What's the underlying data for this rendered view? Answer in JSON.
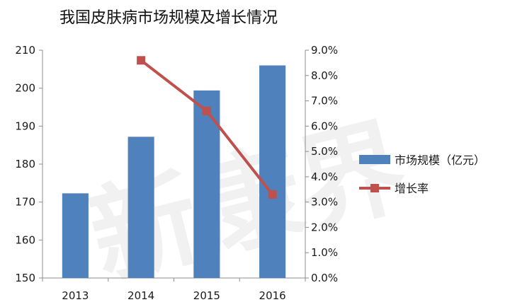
{
  "chart_data": {
    "type": "bar",
    "title": "我国皮肤病市场规模及增长情况",
    "categories": [
      "2013",
      "2014",
      "2015",
      "2016"
    ],
    "series": [
      {
        "name": "市场规模（亿元）",
        "type": "bar",
        "axis": "left",
        "values": [
          172.3,
          187.2,
          199.4,
          206.0
        ],
        "color": "#4F81BD"
      },
      {
        "name": "增长率",
        "type": "line",
        "axis": "right",
        "values": [
          null,
          8.6,
          6.6,
          3.3
        ],
        "color": "#C0504D"
      }
    ],
    "y_left": {
      "min": 150,
      "max": 210,
      "ticks": [
        "150",
        "160",
        "170",
        "180",
        "190",
        "200",
        "210"
      ]
    },
    "y_right": {
      "min": 0,
      "max": 9,
      "ticks": [
        "0.0%",
        "1.0%",
        "2.0%",
        "3.0%",
        "4.0%",
        "5.0%",
        "6.0%",
        "7.0%",
        "8.0%",
        "9.0%"
      ]
    },
    "legend": "right",
    "grid": false,
    "watermark": "新康界"
  }
}
